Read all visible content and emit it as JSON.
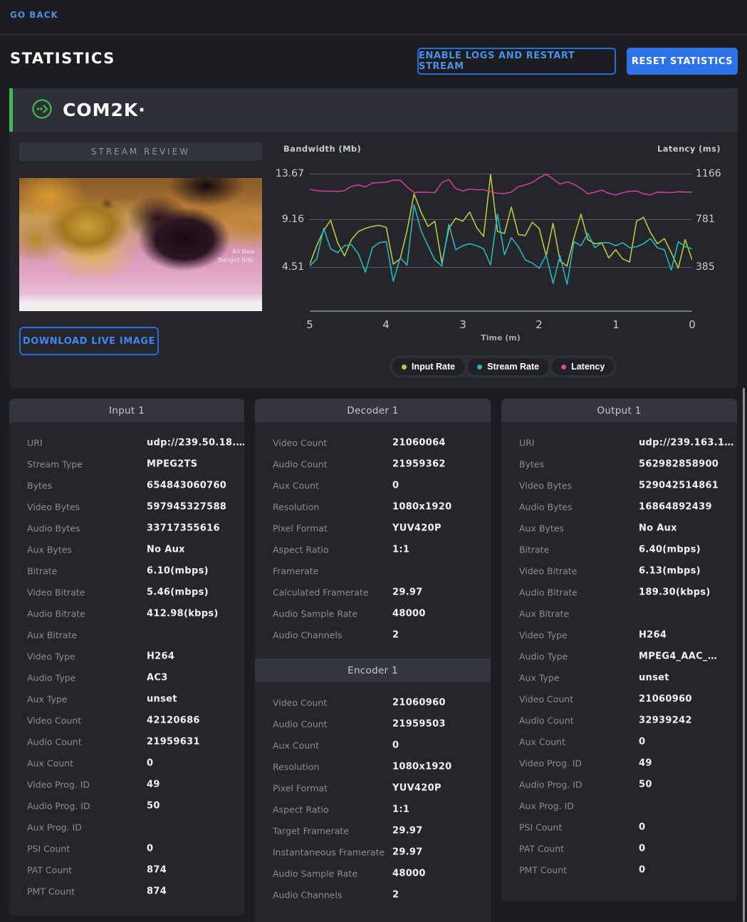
{
  "nav": {
    "go_back": "GO BACK"
  },
  "header": {
    "title": "STATISTICS",
    "enable_logs_button": "ENABLE LOGS AND RESTART STREAM",
    "reset_button": "RESET STATISTICS"
  },
  "brand": {
    "name": "COM2K·"
  },
  "stream_review": {
    "title": "STREAM REVIEW",
    "download_button": "DOWNLOAD LIVE IMAGE",
    "overlay_line1": "All New",
    "overlay_line2": "Tonight 9/8c"
  },
  "chart_data": {
    "type": "line",
    "left_title": "Bandwidth (Mb)",
    "right_title": "Latency (ms)",
    "x_title": "Time (m)",
    "left_ticks": [
      "13.67",
      "9.16",
      "4.51"
    ],
    "right_ticks": [
      "1166",
      "781",
      "385"
    ],
    "x_ticks": [
      "5",
      "4",
      "3",
      "2",
      "1",
      "0"
    ],
    "left_grid_values": [
      13.67,
      9.16,
      4.51
    ],
    "right_grid_values": [
      1166,
      781,
      385
    ],
    "x_range": [
      5,
      0
    ],
    "grid": true,
    "legend_position": "bottom",
    "legend": [
      {
        "label": "Input Rate",
        "color": "#b9c93f"
      },
      {
        "label": "Stream Rate",
        "color": "#2ab5bd"
      },
      {
        "label": "Latency",
        "color": "#e0449f"
      }
    ],
    "series": [
      {
        "name": "Input Rate",
        "axis": "left",
        "color": "#b9c93f",
        "values": [
          4.8,
          6.6,
          8.1,
          9.1,
          6.9,
          5.6,
          7.2,
          8.0,
          8.3,
          8.5,
          8.6,
          8.4,
          4.8,
          5.3,
          8.1,
          11.7,
          9.9,
          8.5,
          9.0,
          4.9,
          8.3,
          9.3,
          9.0,
          9.9,
          8.4,
          7.5,
          13.6,
          8.0,
          7.8,
          10.4,
          7.7,
          7.6,
          8.9,
          8.3,
          5.6,
          8.8,
          5.1,
          4.6,
          7.4,
          9.7,
          7.2,
          6.8,
          6.9,
          5.4,
          6.2,
          5.3,
          5.0,
          9.0,
          9.4,
          7.9,
          6.8,
          7.3,
          5.9,
          4.4,
          7.2,
          5.2
        ]
      },
      {
        "name": "Stream Rate",
        "axis": "left",
        "color": "#2ab5bd",
        "values": [
          4.6,
          5.3,
          8.3,
          6.3,
          5.9,
          6.6,
          6.7,
          5.8,
          4.0,
          6.4,
          6.9,
          7.0,
          3.1,
          5.4,
          4.7,
          10.6,
          8.1,
          6.6,
          5.2,
          4.6,
          8.7,
          6.2,
          6.6,
          6.8,
          6.6,
          6.3,
          4.7,
          9.7,
          5.7,
          7.4,
          6.5,
          5.2,
          4.9,
          4.4,
          5.7,
          2.9,
          5.6,
          2.8,
          7.0,
          6.6,
          7.8,
          6.4,
          6.9,
          6.9,
          6.6,
          6.9,
          6.4,
          6.5,
          6.8,
          7.3,
          6.4,
          6.2,
          4.2,
          7.0,
          6.5,
          6.3
        ]
      },
      {
        "name": "Latency",
        "axis": "right",
        "color": "#d13b9a",
        "values": [
          1035,
          1025,
          1020,
          1020,
          1018,
          1025,
          1060,
          1072,
          1055,
          1088,
          1092,
          1096,
          1112,
          1112,
          1055,
          1008,
          1012,
          1010,
          1008,
          1092,
          1118,
          1042,
          1022,
          1038,
          1032,
          1032,
          1015,
          1002,
          1000,
          1012,
          1058,
          1072,
          1092,
          1132,
          1162,
          1122,
          1078,
          1098,
          1078,
          1042,
          998,
          1012,
          1028,
          1002,
          988,
          1008,
          1018,
          1022,
          998,
          988,
          1012,
          1010,
          1008,
          1015,
          1012,
          1012
        ]
      }
    ]
  },
  "panels": {
    "input": {
      "title": "Input 1",
      "rows": [
        {
          "label": "URI",
          "value": "udp://239.50.18.…"
        },
        {
          "label": "Stream Type",
          "value": "MPEG2TS"
        },
        {
          "label": "Bytes",
          "value": "654843060760"
        },
        {
          "label": "Video Bytes",
          "value": "597945327588"
        },
        {
          "label": "Audio Bytes",
          "value": "33717355616"
        },
        {
          "label": "Aux Bytes",
          "value": "No Aux"
        },
        {
          "label": "Bitrate",
          "value": "6.10(mbps)"
        },
        {
          "label": "Video Bitrate",
          "value": "5.46(mbps)"
        },
        {
          "label": "Audio Bitrate",
          "value": "412.98(kbps)"
        },
        {
          "label": "Aux Bitrate",
          "value": ""
        },
        {
          "label": "Video Type",
          "value": "H264"
        },
        {
          "label": "Audio Type",
          "value": "AC3"
        },
        {
          "label": "Aux Type",
          "value": "unset"
        },
        {
          "label": "Video Count",
          "value": "42120686"
        },
        {
          "label": "Audio Count",
          "value": "21959631"
        },
        {
          "label": "Aux Count",
          "value": "0"
        },
        {
          "label": "Video Prog. ID",
          "value": "49"
        },
        {
          "label": "Audio Prog. ID",
          "value": "50"
        },
        {
          "label": "Aux Prog. ID",
          "value": ""
        },
        {
          "label": "PSI Count",
          "value": "0"
        },
        {
          "label": "PAT Count",
          "value": "874"
        },
        {
          "label": "PMT Count",
          "value": "874"
        }
      ]
    },
    "decoder": {
      "title": "Decoder 1",
      "rows": [
        {
          "label": "Video Count",
          "value": "21060064"
        },
        {
          "label": "Audio Count",
          "value": "21959362"
        },
        {
          "label": "Aux Count",
          "value": "0"
        },
        {
          "label": "Resolution",
          "value": "1080x1920"
        },
        {
          "label": "Pixel Format",
          "value": "YUV420P"
        },
        {
          "label": "Aspect Ratio",
          "value": "1:1"
        },
        {
          "label": "Framerate",
          "value": ""
        },
        {
          "label": "Calculated Framerate",
          "value": "29.97"
        },
        {
          "label": "Audio Sample Rate",
          "value": "48000"
        },
        {
          "label": "Audio Channels",
          "value": "2"
        }
      ]
    },
    "encoder": {
      "title": "Encoder 1",
      "rows": [
        {
          "label": "Video Count",
          "value": "21060960"
        },
        {
          "label": "Audio Count",
          "value": "21959503"
        },
        {
          "label": "Aux Count",
          "value": "0"
        },
        {
          "label": "Resolution",
          "value": "1080x1920"
        },
        {
          "label": "Pixel Format",
          "value": "YUV420P"
        },
        {
          "label": "Aspect Ratio",
          "value": "1:1"
        },
        {
          "label": "Target Framerate",
          "value": "29.97"
        },
        {
          "label": "Instantaneous Framerate",
          "value": "29.97"
        },
        {
          "label": "Audio Sample Rate",
          "value": "48000"
        },
        {
          "label": "Audio Channels",
          "value": "2"
        }
      ]
    },
    "output": {
      "title": "Output 1",
      "rows": [
        {
          "label": "URI",
          "value": "udp://239.163.1…"
        },
        {
          "label": "Bytes",
          "value": "562982858900"
        },
        {
          "label": "Video Bytes",
          "value": "529042514861"
        },
        {
          "label": "Audio Bytes",
          "value": "16864892439"
        },
        {
          "label": "Aux Bytes",
          "value": "No Aux"
        },
        {
          "label": "Bitrate",
          "value": "6.40(mbps)"
        },
        {
          "label": "Video Bitrate",
          "value": "6.13(mbps)"
        },
        {
          "label": "Audio Bitrate",
          "value": "189.30(kbps)"
        },
        {
          "label": "Aux Bitrate",
          "value": ""
        },
        {
          "label": "Video Type",
          "value": "H264"
        },
        {
          "label": "Audio Type",
          "value": "MPEG4_AAC_…"
        },
        {
          "label": "Aux Type",
          "value": "unset"
        },
        {
          "label": "Video Count",
          "value": "21060960"
        },
        {
          "label": "Audio Count",
          "value": "32939242"
        },
        {
          "label": "Aux Count",
          "value": "0"
        },
        {
          "label": "Video Prog. ID",
          "value": "49"
        },
        {
          "label": "Audio Prog. ID",
          "value": "50"
        },
        {
          "label": "Aux Prog. ID",
          "value": ""
        },
        {
          "label": "PSI Count",
          "value": "0"
        },
        {
          "label": "PAT Count",
          "value": "0"
        },
        {
          "label": "PMT Count",
          "value": "0"
        }
      ]
    }
  },
  "colors": {
    "accent_green": "#43b654",
    "accent_blue": "#2d72e8",
    "link_blue": "#4a90e2"
  }
}
